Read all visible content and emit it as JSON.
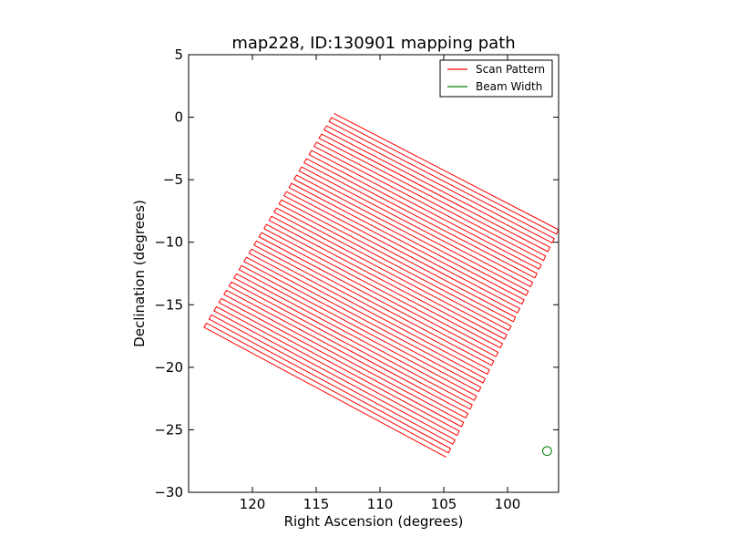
{
  "chart_data": {
    "type": "line",
    "title": "map228, ID:130901 mapping path",
    "xlabel": "Right Ascension (degrees)",
    "ylabel": "Declination (degrees)",
    "xlim": [
      125,
      96
    ],
    "ylim": [
      -30,
      5
    ],
    "x_inverted": true,
    "xticks": [
      120,
      115,
      110,
      105,
      100
    ],
    "xtick_labels": [
      "120",
      "115",
      "110",
      "105",
      "100"
    ],
    "yticks": [
      5,
      0,
      -5,
      -10,
      -15,
      -20,
      -25,
      -30
    ],
    "ytick_labels": [
      "5",
      "0",
      "−5",
      "−10",
      "−15",
      "−20",
      "−25",
      "−30"
    ],
    "grid": false,
    "legend_position": "top-right",
    "series": [
      {
        "name": "Scan Pattern",
        "color": "#ff0000",
        "style": "zigzag raster scan over a tilted square",
        "corners": [
          {
            "ra": 113.6,
            "dec": 0.3
          },
          {
            "ra": 96.0,
            "dec": -9.0
          },
          {
            "ra": 104.8,
            "dec": -27.2
          },
          {
            "ra": 123.8,
            "dec": -16.8
          }
        ],
        "scan_lines": 52
      },
      {
        "name": "Beam Width",
        "color": "#008000",
        "style": "circle",
        "center": {
          "ra": 96.9,
          "dec": -26.7
        },
        "radius_deg": 0.35
      }
    ]
  }
}
